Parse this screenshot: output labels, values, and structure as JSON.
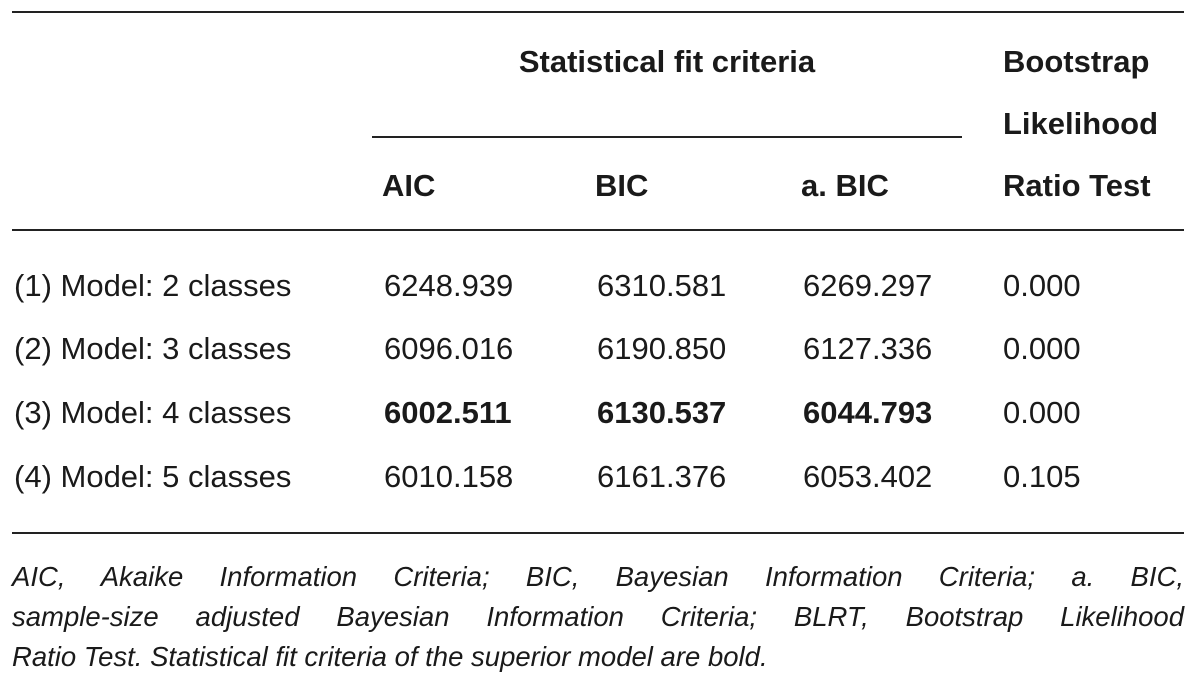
{
  "table": {
    "group_header": "Statistical fit criteria",
    "blrt_header_lines": [
      "Bootstrap",
      "Likelihood",
      "Ratio Test"
    ],
    "columns": [
      "AIC",
      "BIC",
      "a. BIC"
    ],
    "rows": [
      [
        "(1) Model: 2 classes",
        "6248.939",
        "6310.581",
        "6269.297",
        "0.000"
      ],
      [
        "(2) Model: 3 classes",
        "6096.016",
        "6190.850",
        "6127.336",
        "0.000"
      ],
      [
        "(3) Model: 4 classes",
        "6002.511",
        "6130.537",
        "6044.793",
        "0.000"
      ],
      [
        "(4) Model: 5 classes",
        "6010.158",
        "6161.376",
        "6053.402",
        "0.105"
      ]
    ]
  },
  "footnote_lines": [
    "AIC, Akaike Information Criteria; BIC, Bayesian Information Criteria; a. BIC,",
    "sample-size adjusted Bayesian Information Criteria; BLRT, Bootstrap Likelihood",
    "Ratio Test. Statistical fit criteria of the superior model are bold."
  ]
}
